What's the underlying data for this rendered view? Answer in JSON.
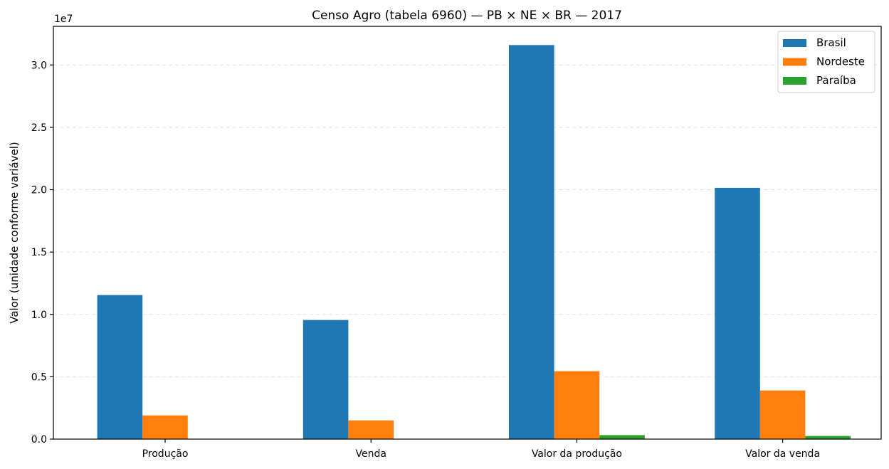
{
  "chart_data": {
    "type": "bar",
    "title": "Censo Agro (tabela 6960) — PB × NE × BR — 2017",
    "xlabel": "",
    "ylabel": "Valor (unidade conforme variável)",
    "offset_label": "1e7",
    "categories": [
      "Produção",
      "Venda",
      "Valor da produção",
      "Valor da venda"
    ],
    "series": [
      {
        "name": "Brasil",
        "color": "#1f77b4",
        "values": [
          11550000,
          9550000,
          31600000,
          20150000
        ]
      },
      {
        "name": "Nordeste",
        "color": "#ff7f0e",
        "values": [
          1900000,
          1500000,
          5450000,
          3900000
        ]
      },
      {
        "name": "Paraíba",
        "color": "#2ca02c",
        "values": [
          20000,
          15000,
          320000,
          250000
        ]
      }
    ],
    "ylim": [
      0,
      33100000
    ],
    "yticks": [
      0,
      5000000,
      10000000,
      15000000,
      20000000,
      25000000,
      30000000
    ],
    "ytick_labels": [
      "0.0",
      "0.5",
      "1.0",
      "1.5",
      "2.0",
      "2.5",
      "3.0"
    ],
    "grid": "y-dashed",
    "legend_position": "top-right"
  }
}
